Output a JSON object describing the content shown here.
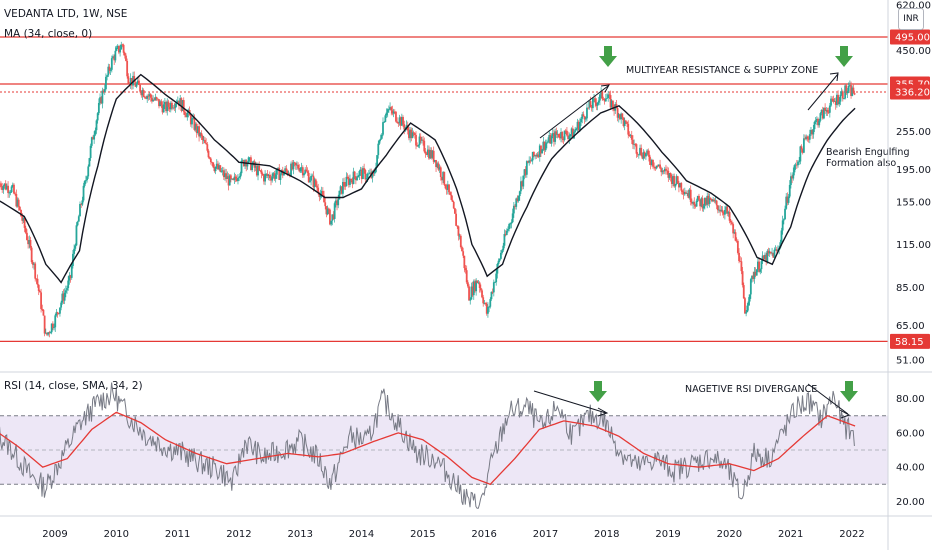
{
  "chart_data": [
    {
      "type": "candlestick",
      "title": "VEDANTA LTD, 1W, NSE",
      "indicator_label": "MA (34, close, 0)",
      "y_scale": "log",
      "ylim": [
        51,
        620
      ],
      "y_ticks": [
        "620.00",
        "450.00",
        "355.70",
        "336.20",
        "255.00",
        "195.00",
        "155.00",
        "115.00",
        "85.00",
        "65.00",
        "51.00"
      ],
      "x_ticks": [
        "2009",
        "2010",
        "2011",
        "2012",
        "2013",
        "2014",
        "2015",
        "2016",
        "2017",
        "2018",
        "2019",
        "2020",
        "2021",
        "2022"
      ],
      "price_path": [
        {
          "t": 2008.0,
          "v": 180
        },
        {
          "t": 2008.3,
          "v": 170
        },
        {
          "t": 2008.5,
          "v": 130
        },
        {
          "t": 2008.75,
          "v": 80
        },
        {
          "t": 2008.85,
          "v": 60
        },
        {
          "t": 2009.0,
          "v": 68
        },
        {
          "t": 2009.25,
          "v": 90
        },
        {
          "t": 2009.5,
          "v": 180
        },
        {
          "t": 2009.75,
          "v": 320
        },
        {
          "t": 2009.95,
          "v": 430
        },
        {
          "t": 2010.1,
          "v": 470
        },
        {
          "t": 2010.2,
          "v": 370
        },
        {
          "t": 2010.5,
          "v": 330
        },
        {
          "t": 2010.8,
          "v": 300
        },
        {
          "t": 2011.0,
          "v": 320
        },
        {
          "t": 2011.3,
          "v": 260
        },
        {
          "t": 2011.6,
          "v": 200
        },
        {
          "t": 2011.9,
          "v": 175
        },
        {
          "t": 2012.1,
          "v": 210
        },
        {
          "t": 2012.4,
          "v": 185
        },
        {
          "t": 2012.7,
          "v": 190
        },
        {
          "t": 2013.0,
          "v": 200
        },
        {
          "t": 2013.3,
          "v": 170
        },
        {
          "t": 2013.5,
          "v": 135
        },
        {
          "t": 2013.7,
          "v": 175
        },
        {
          "t": 2013.95,
          "v": 190
        },
        {
          "t": 2014.2,
          "v": 185
        },
        {
          "t": 2014.4,
          "v": 300
        },
        {
          "t": 2014.6,
          "v": 280
        },
        {
          "t": 2014.8,
          "v": 250
        },
        {
          "t": 2015.0,
          "v": 230
        },
        {
          "t": 2015.2,
          "v": 210
        },
        {
          "t": 2015.4,
          "v": 170
        },
        {
          "t": 2015.6,
          "v": 120
        },
        {
          "t": 2015.75,
          "v": 80
        },
        {
          "t": 2015.9,
          "v": 90
        },
        {
          "t": 2016.05,
          "v": 70
        },
        {
          "t": 2016.2,
          "v": 95
        },
        {
          "t": 2016.45,
          "v": 140
        },
        {
          "t": 2016.7,
          "v": 200
        },
        {
          "t": 2016.95,
          "v": 230
        },
        {
          "t": 2017.2,
          "v": 250
        },
        {
          "t": 2017.45,
          "v": 250
        },
        {
          "t": 2017.7,
          "v": 300
        },
        {
          "t": 2017.95,
          "v": 330
        },
        {
          "t": 2018.2,
          "v": 290
        },
        {
          "t": 2018.45,
          "v": 230
        },
        {
          "t": 2018.7,
          "v": 210
        },
        {
          "t": 2018.95,
          "v": 190
        },
        {
          "t": 2019.2,
          "v": 175
        },
        {
          "t": 2019.45,
          "v": 155
        },
        {
          "t": 2019.7,
          "v": 155
        },
        {
          "t": 2019.95,
          "v": 145
        },
        {
          "t": 2020.15,
          "v": 110
        },
        {
          "t": 2020.25,
          "v": 70
        },
        {
          "t": 2020.4,
          "v": 95
        },
        {
          "t": 2020.6,
          "v": 105
        },
        {
          "t": 2020.8,
          "v": 110
        },
        {
          "t": 2021.0,
          "v": 180
        },
        {
          "t": 2021.2,
          "v": 230
        },
        {
          "t": 2021.4,
          "v": 270
        },
        {
          "t": 2021.6,
          "v": 300
        },
        {
          "t": 2021.75,
          "v": 320
        },
        {
          "t": 2021.9,
          "v": 340
        },
        {
          "t": 2022.05,
          "v": 336
        }
      ],
      "ma_path": [
        {
          "t": 2008.0,
          "v": 160
        },
        {
          "t": 2008.5,
          "v": 140
        },
        {
          "t": 2008.85,
          "v": 100
        },
        {
          "t": 2009.1,
          "v": 88
        },
        {
          "t": 2009.4,
          "v": 110
        },
        {
          "t": 2009.7,
          "v": 200
        },
        {
          "t": 2010.0,
          "v": 320
        },
        {
          "t": 2010.4,
          "v": 380
        },
        {
          "t": 2010.8,
          "v": 330
        },
        {
          "t": 2011.2,
          "v": 290
        },
        {
          "t": 2011.6,
          "v": 240
        },
        {
          "t": 2012.0,
          "v": 205
        },
        {
          "t": 2012.5,
          "v": 200
        },
        {
          "t": 2013.0,
          "v": 180
        },
        {
          "t": 2013.4,
          "v": 160
        },
        {
          "t": 2013.7,
          "v": 160
        },
        {
          "t": 2014.0,
          "v": 170
        },
        {
          "t": 2014.4,
          "v": 215
        },
        {
          "t": 2014.8,
          "v": 270
        },
        {
          "t": 2015.2,
          "v": 240
        },
        {
          "t": 2015.55,
          "v": 170
        },
        {
          "t": 2015.8,
          "v": 115
        },
        {
          "t": 2016.05,
          "v": 92
        },
        {
          "t": 2016.3,
          "v": 100
        },
        {
          "t": 2016.7,
          "v": 150
        },
        {
          "t": 2017.1,
          "v": 210
        },
        {
          "t": 2017.5,
          "v": 250
        },
        {
          "t": 2017.9,
          "v": 290
        },
        {
          "t": 2018.2,
          "v": 305
        },
        {
          "t": 2018.5,
          "v": 270
        },
        {
          "t": 2018.9,
          "v": 220
        },
        {
          "t": 2019.3,
          "v": 180
        },
        {
          "t": 2019.7,
          "v": 165
        },
        {
          "t": 2020.0,
          "v": 150
        },
        {
          "t": 2020.25,
          "v": 125
        },
        {
          "t": 2020.45,
          "v": 105
        },
        {
          "t": 2020.7,
          "v": 100
        },
        {
          "t": 2021.0,
          "v": 130
        },
        {
          "t": 2021.3,
          "v": 190
        },
        {
          "t": 2021.6,
          "v": 240
        },
        {
          "t": 2021.85,
          "v": 275
        },
        {
          "t": 2022.05,
          "v": 300
        }
      ],
      "levels": [
        {
          "value": 495.0,
          "label": "495.00"
        },
        {
          "value": 355.7,
          "label": "355.70"
        },
        {
          "value": 336.2,
          "label": "336.20"
        },
        {
          "value": 58.15,
          "label": "58.15"
        }
      ],
      "annotations": {
        "resistance": "MULTIYEAR RESISTANCE & SUPPLY ZONE",
        "engulf1": "Bearish Engulfing",
        "engulf2": "Formation also"
      }
    },
    {
      "type": "line",
      "title": "RSI (14, close, SMA, 34, 2)",
      "ylim": [
        15,
        92
      ],
      "y_ticks": [
        "80.00",
        "60.00",
        "40.00",
        "20.00"
      ],
      "band": [
        30,
        70
      ],
      "rsi_path": [
        {
          "t": 2008.0,
          "v": 62
        },
        {
          "t": 2008.3,
          "v": 50
        },
        {
          "t": 2008.6,
          "v": 35
        },
        {
          "t": 2008.85,
          "v": 28
        },
        {
          "t": 2009.1,
          "v": 45
        },
        {
          "t": 2009.4,
          "v": 65
        },
        {
          "t": 2009.7,
          "v": 78
        },
        {
          "t": 2009.95,
          "v": 83
        },
        {
          "t": 2010.2,
          "v": 70
        },
        {
          "t": 2010.5,
          "v": 58
        },
        {
          "t": 2010.8,
          "v": 52
        },
        {
          "t": 2011.1,
          "v": 48
        },
        {
          "t": 2011.4,
          "v": 42
        },
        {
          "t": 2011.7,
          "v": 38
        },
        {
          "t": 2011.9,
          "v": 30
        },
        {
          "t": 2012.1,
          "v": 55
        },
        {
          "t": 2012.4,
          "v": 45
        },
        {
          "t": 2012.7,
          "v": 50
        },
        {
          "t": 2013.0,
          "v": 55
        },
        {
          "t": 2013.3,
          "v": 45
        },
        {
          "t": 2013.5,
          "v": 30
        },
        {
          "t": 2013.8,
          "v": 58
        },
        {
          "t": 2014.1,
          "v": 55
        },
        {
          "t": 2014.35,
          "v": 80
        },
        {
          "t": 2014.6,
          "v": 65
        },
        {
          "t": 2014.9,
          "v": 48
        },
        {
          "t": 2015.2,
          "v": 45
        },
        {
          "t": 2015.5,
          "v": 32
        },
        {
          "t": 2015.75,
          "v": 20
        },
        {
          "t": 2015.95,
          "v": 18
        },
        {
          "t": 2016.1,
          "v": 40
        },
        {
          "t": 2016.4,
          "v": 72
        },
        {
          "t": 2016.7,
          "v": 75
        },
        {
          "t": 2016.95,
          "v": 62
        },
        {
          "t": 2017.2,
          "v": 76
        },
        {
          "t": 2017.45,
          "v": 58
        },
        {
          "t": 2017.7,
          "v": 70
        },
        {
          "t": 2017.95,
          "v": 68
        },
        {
          "t": 2018.2,
          "v": 50
        },
        {
          "t": 2018.5,
          "v": 40
        },
        {
          "t": 2018.8,
          "v": 45
        },
        {
          "t": 2019.1,
          "v": 38
        },
        {
          "t": 2019.4,
          "v": 42
        },
        {
          "t": 2019.7,
          "v": 46
        },
        {
          "t": 2019.95,
          "v": 40
        },
        {
          "t": 2020.2,
          "v": 22
        },
        {
          "t": 2020.4,
          "v": 48
        },
        {
          "t": 2020.65,
          "v": 45
        },
        {
          "t": 2020.9,
          "v": 62
        },
        {
          "t": 2021.1,
          "v": 75
        },
        {
          "t": 2021.3,
          "v": 78
        },
        {
          "t": 2021.5,
          "v": 68
        },
        {
          "t": 2021.7,
          "v": 82
        },
        {
          "t": 2021.85,
          "v": 65
        },
        {
          "t": 2022.05,
          "v": 58
        }
      ],
      "sma_path": [
        {
          "t": 2008.0,
          "v": 62
        },
        {
          "t": 2008.4,
          "v": 52
        },
        {
          "t": 2008.8,
          "v": 40
        },
        {
          "t": 2009.2,
          "v": 45
        },
        {
          "t": 2009.6,
          "v": 62
        },
        {
          "t": 2010.0,
          "v": 72
        },
        {
          "t": 2010.4,
          "v": 66
        },
        {
          "t": 2010.8,
          "v": 56
        },
        {
          "t": 2011.3,
          "v": 48
        },
        {
          "t": 2011.8,
          "v": 42
        },
        {
          "t": 2012.3,
          "v": 45
        },
        {
          "t": 2012.8,
          "v": 48
        },
        {
          "t": 2013.3,
          "v": 46
        },
        {
          "t": 2013.7,
          "v": 48
        },
        {
          "t": 2014.2,
          "v": 55
        },
        {
          "t": 2014.6,
          "v": 60
        },
        {
          "t": 2015.0,
          "v": 56
        },
        {
          "t": 2015.4,
          "v": 46
        },
        {
          "t": 2015.8,
          "v": 34
        },
        {
          "t": 2016.1,
          "v": 30
        },
        {
          "t": 2016.5,
          "v": 45
        },
        {
          "t": 2016.9,
          "v": 62
        },
        {
          "t": 2017.3,
          "v": 67
        },
        {
          "t": 2017.8,
          "v": 64
        },
        {
          "t": 2018.2,
          "v": 58
        },
        {
          "t": 2018.6,
          "v": 48
        },
        {
          "t": 2019.0,
          "v": 42
        },
        {
          "t": 2019.5,
          "v": 40
        },
        {
          "t": 2020.0,
          "v": 42
        },
        {
          "t": 2020.4,
          "v": 38
        },
        {
          "t": 2020.8,
          "v": 45
        },
        {
          "t": 2021.2,
          "v": 58
        },
        {
          "t": 2021.6,
          "v": 70
        },
        {
          "t": 2022.05,
          "v": 64
        }
      ],
      "annotations": {
        "divergence": "NAGETIVE RSI DIVERGANCE"
      }
    }
  ],
  "currency_badge": "INR",
  "colors": {
    "up": "#26a69a",
    "down": "#ef5350",
    "ma": "#131722",
    "level": "#e53935",
    "rsi": "#787b86",
    "rsi_sma": "#e53935",
    "band": "#ede7f6",
    "arrow": "#43a047"
  }
}
